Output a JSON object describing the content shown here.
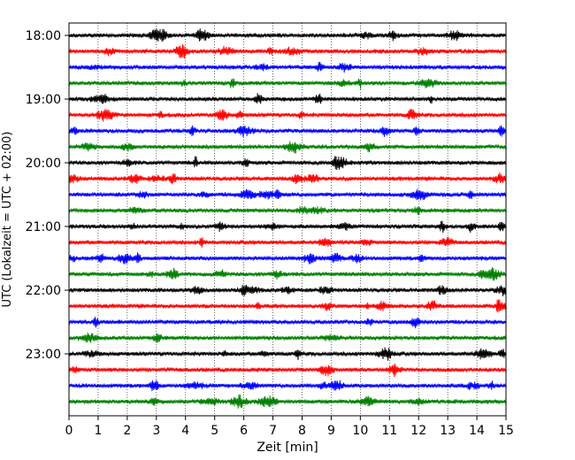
{
  "chart_data": {
    "type": "line",
    "title": "",
    "xlabel": "Zeit  [min]",
    "ylabel": "UTC (Lokalzeit = UTC + 02:00)",
    "xlim": [
      0,
      15
    ],
    "x_ticks": [
      "0",
      "1",
      "2",
      "3",
      "4",
      "5",
      "6",
      "7",
      "8",
      "9",
      "10",
      "11",
      "12",
      "13",
      "14",
      "15"
    ],
    "y_ticks": [
      "18:00",
      "19:00",
      "20:00",
      "21:00",
      "22:00",
      "23:00"
    ],
    "grid": "vertical-dotted",
    "series_colors": [
      "#000000",
      "#ff0000",
      "#0000ff",
      "#008000"
    ],
    "traces": [
      {
        "start": "18:00",
        "color": "#000000"
      },
      {
        "start": "18:15",
        "color": "#ff0000"
      },
      {
        "start": "18:30",
        "color": "#0000ff"
      },
      {
        "start": "18:45",
        "color": "#008000"
      },
      {
        "start": "19:00",
        "color": "#000000"
      },
      {
        "start": "19:15",
        "color": "#ff0000"
      },
      {
        "start": "19:30",
        "color": "#0000ff"
      },
      {
        "start": "19:45",
        "color": "#008000"
      },
      {
        "start": "20:00",
        "color": "#000000"
      },
      {
        "start": "20:15",
        "color": "#ff0000"
      },
      {
        "start": "20:30",
        "color": "#0000ff"
      },
      {
        "start": "20:45",
        "color": "#008000"
      },
      {
        "start": "21:00",
        "color": "#000000"
      },
      {
        "start": "21:15",
        "color": "#ff0000"
      },
      {
        "start": "21:30",
        "color": "#0000ff"
      },
      {
        "start": "21:45",
        "color": "#008000"
      },
      {
        "start": "22:00",
        "color": "#000000"
      },
      {
        "start": "22:15",
        "color": "#ff0000"
      },
      {
        "start": "22:30",
        "color": "#0000ff"
      },
      {
        "start": "22:45",
        "color": "#008000"
      },
      {
        "start": "23:00",
        "color": "#000000"
      },
      {
        "start": "23:15",
        "color": "#ff0000"
      },
      {
        "start": "23:30",
        "color": "#0000ff"
      },
      {
        "start": "23:45",
        "color": "#008000"
      }
    ]
  }
}
